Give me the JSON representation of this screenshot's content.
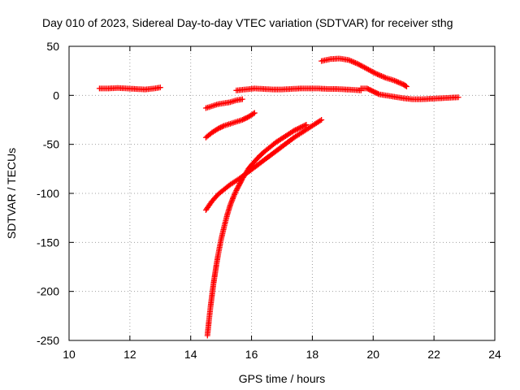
{
  "chart_data": {
    "type": "scatter",
    "title": "Day 010 of 2023, Sidereal Day-to-day VTEC variation (SDTVAR) for receiver sthg",
    "xlabel": "GPS time / hours",
    "ylabel": "SDTVAR / TECUs",
    "xlim": [
      10,
      24
    ],
    "ylim": [
      -250,
      50
    ],
    "xticks": [
      10,
      12,
      14,
      16,
      18,
      20,
      22,
      24
    ],
    "yticks": [
      -250,
      -200,
      -150,
      -100,
      -50,
      0,
      50
    ],
    "xtick_labels": [
      "10",
      "12",
      "14",
      "16",
      "18",
      "20",
      "22",
      "24"
    ],
    "ytick_labels": [
      "-250",
      "-200",
      "-150",
      "-100",
      "-50",
      "0",
      "50"
    ],
    "grid": true,
    "marker": "+",
    "color": "#ff0000",
    "series": [
      {
        "x": [
          11.0,
          11.3,
          11.6,
          11.9,
          12.2,
          12.5,
          12.8,
          13.0
        ],
        "y": [
          7,
          7,
          7.5,
          7,
          6.5,
          6,
          7,
          8
        ]
      },
      {
        "x": [
          14.5,
          14.7,
          14.9,
          15.1,
          15.3,
          15.5,
          15.7
        ],
        "y": [
          -13,
          -11,
          -9,
          -8,
          -7,
          -5,
          -4
        ]
      },
      {
        "x": [
          14.5,
          14.7,
          14.9,
          15.1,
          15.3,
          15.5,
          15.7,
          15.9,
          16.1
        ],
        "y": [
          -43,
          -38,
          -34,
          -31,
          -29,
          -27,
          -25,
          -22,
          -18
        ]
      },
      {
        "x": [
          14.5,
          14.7,
          14.9,
          15.1,
          15.3,
          15.6,
          15.9,
          16.2,
          16.5,
          16.8,
          17.1,
          17.4,
          17.7,
          18.0,
          18.3
        ],
        "y": [
          -117,
          -108,
          -101,
          -96,
          -91,
          -85,
          -78,
          -71,
          -64,
          -57,
          -50,
          -43,
          -37,
          -31,
          -25
        ]
      },
      {
        "x": [
          14.55,
          14.6,
          14.65,
          14.7,
          14.75,
          14.8,
          14.85,
          14.9,
          15.0,
          15.1,
          15.2,
          15.3,
          15.4,
          15.5,
          15.6,
          15.7,
          15.8,
          15.9,
          16.0,
          16.2,
          16.4,
          16.6,
          16.8,
          17.0,
          17.2,
          17.4,
          17.6,
          17.8
        ],
        "y": [
          -245,
          -230,
          -216,
          -204,
          -192,
          -182,
          -172,
          -163,
          -147,
          -134,
          -122,
          -112,
          -104,
          -97,
          -91,
          -85,
          -80,
          -75,
          -71,
          -64,
          -58,
          -53,
          -48,
          -44,
          -40,
          -36,
          -33,
          -30
        ]
      },
      {
        "x": [
          15.5,
          15.8,
          16.1,
          16.4,
          16.7,
          17.0,
          17.3,
          17.6,
          17.9,
          18.2,
          18.5,
          18.8,
          19.1,
          19.4,
          19.6
        ],
        "y": [
          5,
          6,
          7,
          6.5,
          6,
          6,
          6.5,
          7,
          7,
          7,
          6.5,
          6.5,
          6,
          5.5,
          5
        ]
      },
      {
        "x": [
          18.3,
          18.6,
          18.9,
          19.2,
          19.5,
          19.8,
          20.1,
          20.4,
          20.7,
          21.0,
          21.1
        ],
        "y": [
          35,
          37,
          37.5,
          36,
          32,
          27,
          22,
          18,
          15,
          11,
          9
        ]
      },
      {
        "x": [
          19.6,
          19.8,
          20.0,
          20.2,
          20.4,
          20.6,
          20.8,
          21.0,
          21.3,
          21.6,
          21.9,
          22.2,
          22.5,
          22.8
        ],
        "y": [
          7,
          7,
          4,
          1,
          0,
          -1,
          -2,
          -3,
          -4,
          -4,
          -3.5,
          -3,
          -2.5,
          -2
        ]
      }
    ]
  }
}
